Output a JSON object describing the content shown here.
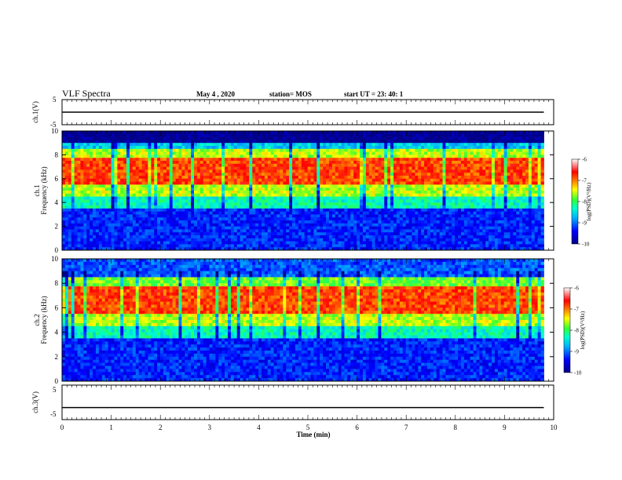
{
  "header": {
    "title": "VLF Spectra",
    "date": "May 4  , 2020",
    "station": "station= MOS",
    "start_time": "start  UT  =   23: 40: 1"
  },
  "chart_data": [
    {
      "panel": "ch1-voltage",
      "type": "line",
      "ylabel": "ch.1(V)",
      "ylim": [
        -5,
        5
      ],
      "y_ticks": [
        "5",
        "-5"
      ],
      "series": [
        {
          "x": [
            0,
            9.8
          ],
          "y": [
            0,
            0
          ]
        }
      ],
      "xlim": [
        0,
        10
      ]
    },
    {
      "panel": "ch1-spectrogram",
      "type": "heatmap",
      "ylabel": "ch.1\nFrequency  (kHz)",
      "ylim": [
        0,
        10
      ],
      "y_ticks": [
        "0",
        "2",
        "4",
        "6",
        "8",
        "10"
      ],
      "xlim": [
        0,
        9.8
      ],
      "bands_khz": [
        {
          "from": 0,
          "to": 3.5,
          "level": -9.3
        },
        {
          "from": 3.5,
          "to": 4.5,
          "level": -8.3
        },
        {
          "from": 4.5,
          "to": 5.5,
          "level": -7.6
        },
        {
          "from": 5.5,
          "to": 7.8,
          "level": -6.8
        },
        {
          "from": 7.8,
          "to": 8.6,
          "level": -7.6
        },
        {
          "from": 8.6,
          "to": 9.0,
          "level": -8.6
        },
        {
          "from": 9.0,
          "to": 10,
          "level": -10
        }
      ],
      "colorbar": {
        "title": "log(PSD)(V²/Hz)",
        "ticks": [
          "-6",
          "-7",
          "-8",
          "-9",
          "-10"
        ],
        "range": [
          -10,
          -6
        ]
      }
    },
    {
      "panel": "ch2-spectrogram",
      "type": "heatmap",
      "ylabel": "ch.2\nFrequency  (kHz)",
      "ylim": [
        0,
        10
      ],
      "y_ticks": [
        "0",
        "2",
        "4",
        "6",
        "8",
        "10"
      ],
      "xlim": [
        0,
        9.8
      ],
      "bands_khz": [
        {
          "from": 0,
          "to": 3.5,
          "level": -9.3
        },
        {
          "from": 3.5,
          "to": 4.5,
          "level": -8.3
        },
        {
          "from": 4.5,
          "to": 5.5,
          "level": -7.6
        },
        {
          "from": 5.5,
          "to": 7.8,
          "level": -6.8
        },
        {
          "from": 7.8,
          "to": 8.6,
          "level": -7.8
        },
        {
          "from": 8.6,
          "to": 10,
          "level": -9.1
        }
      ],
      "colorbar": {
        "title": "log(PSD)(V²/Hz)",
        "ticks": [
          "-6",
          "-7",
          "-8",
          "-9",
          "-10"
        ],
        "range": [
          -10,
          -6
        ]
      }
    },
    {
      "panel": "ch3-voltage",
      "type": "line",
      "ylabel": "ch.3(V)",
      "ylim": [
        -5,
        5
      ],
      "y_ticks": [
        "5",
        "-5"
      ],
      "series": [
        {
          "x": [
            0,
            9.8
          ],
          "y": [
            -1.5,
            -1.5
          ]
        }
      ],
      "xlim": [
        0,
        10
      ],
      "xlabel": "Time  (min)",
      "x_ticks": [
        "0",
        "1",
        "2",
        "3",
        "4",
        "5",
        "6",
        "7",
        "8",
        "9",
        "10"
      ]
    }
  ]
}
